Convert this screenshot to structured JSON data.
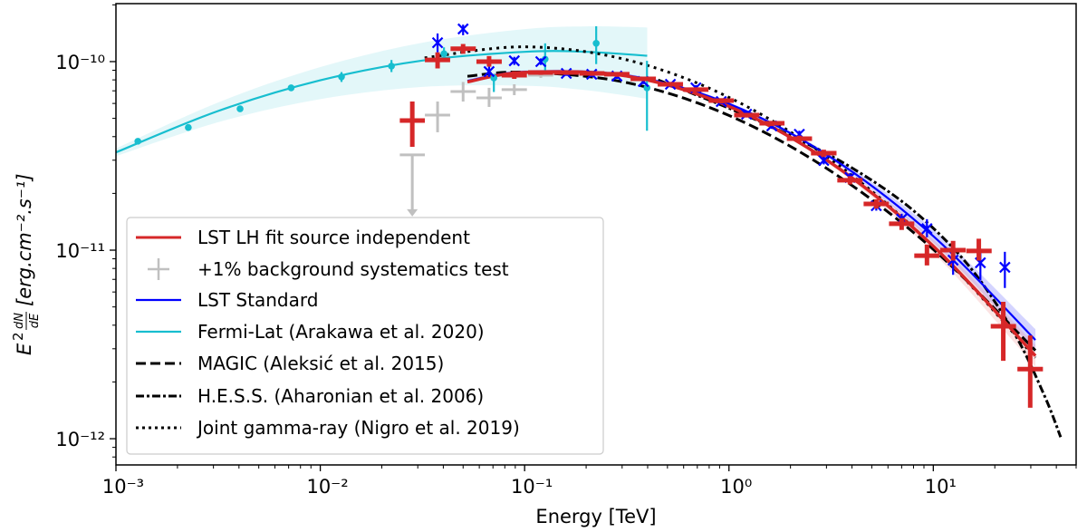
{
  "chart_data": {
    "type": "scatter",
    "title": "",
    "xlabel": "Energy [TeV]",
    "ylabel": {
      "base": "E",
      "exp": "2",
      "frac_num": "dN",
      "frac_den": "dE",
      "units": "[erg.cm⁻².s⁻¹]"
    },
    "x_scale": "log",
    "y_scale": "log",
    "xlim": [
      0.001,
      50
    ],
    "ylim": [
      7.26e-13,
      2.03e-10
    ],
    "grid": false,
    "legend_position": "lower-left",
    "x_ticks": [
      {
        "value": 0.001,
        "label": "10⁻³"
      },
      {
        "value": 0.01,
        "label": "10⁻²"
      },
      {
        "value": 0.1,
        "label": "10⁻¹"
      },
      {
        "value": 1,
        "label": "10⁰"
      },
      {
        "value": 10,
        "label": "10¹"
      }
    ],
    "y_ticks": [
      {
        "value": 1e-10,
        "label": "10⁻¹⁰"
      },
      {
        "value": 1e-11,
        "label": "10⁻¹¹"
      },
      {
        "value": 1e-12,
        "label": "10⁻¹²"
      }
    ],
    "colors": {
      "lst_lh": "#d62728",
      "bkg_test": "#c0c0c0",
      "lst_std": "#0000ff",
      "fermi": "#17becf",
      "reference": "#000000"
    },
    "legend": [
      {
        "key": "lst_lh_fit",
        "label": "LST LH fit source independent",
        "style": "solid-red"
      },
      {
        "key": "bkg_test",
        "label": "+1% background systematics test",
        "style": "errorbar-gray"
      },
      {
        "key": "lst_std",
        "label": "LST Standard",
        "style": "solid-blue"
      },
      {
        "key": "fermi",
        "label": "Fermi-Lat (Arakawa et al. 2020)",
        "style": "solid-cyan"
      },
      {
        "key": "magic",
        "label": "MAGIC (Aleksić et al. 2015)",
        "style": "dashed"
      },
      {
        "key": "hess",
        "label": "H.E.S.S. (Aharonian et al. 2006)",
        "style": "dashdot"
      },
      {
        "key": "nigro",
        "label": "Joint gamma-ray (Nigro et al. 2019)",
        "style": "dotted"
      }
    ],
    "point_columns": [
      "energy",
      "energy_lo",
      "energy_hi",
      "flux",
      "flux_lo",
      "flux_hi"
    ],
    "lst_lh_points": [
      [
        0.0282,
        0.0245,
        0.0325,
        4.87e-11,
        3.53e-11,
        6.14e-11
      ],
      [
        0.0375,
        0.0325,
        0.0432,
        1.02e-10,
        9.2e-11,
        1.12e-10
      ],
      [
        0.05,
        0.0434,
        0.0577,
        1.17e-10,
        1.1e-10,
        1.24e-10
      ],
      [
        0.067,
        0.0581,
        0.0773,
        1e-10,
        9.4e-11,
        1.07e-10
      ],
      [
        0.089,
        0.0772,
        0.1026,
        8.47e-11,
        8.1e-11,
        8.9e-11
      ],
      [
        0.12,
        0.104,
        0.138,
        8.75e-11,
        8.5e-11,
        9e-11
      ],
      [
        0.16,
        0.139,
        0.184,
        8.75e-11,
        8.5e-11,
        9e-11
      ],
      [
        0.213,
        0.185,
        0.246,
        8.66e-11,
        8.4e-11,
        8.9e-11
      ],
      [
        0.283,
        0.245,
        0.326,
        8.57e-11,
        8.3e-11,
        8.8e-11
      ],
      [
        0.381,
        0.33,
        0.439,
        8.1e-11,
        7.9e-11,
        8.3e-11
      ],
      [
        0.517,
        0.448,
        0.596,
        7.58e-11,
        7.4e-11,
        7.8e-11
      ],
      [
        0.689,
        0.598,
        0.794,
        7.1e-11,
        6.9e-11,
        7.3e-11
      ],
      [
        0.917,
        0.795,
        1.057,
        6.21e-11,
        6e-11,
        6.4e-11
      ],
      [
        1.22,
        1.06,
        1.41,
        5.2e-11,
        5.05e-11,
        5.35e-11
      ],
      [
        1.62,
        1.41,
        1.87,
        4.71e-11,
        4.55e-11,
        4.85e-11
      ],
      [
        2.21,
        1.92,
        2.55,
        3.9e-11,
        3.75e-11,
        4.05e-11
      ],
      [
        2.91,
        2.52,
        3.36,
        3.27e-11,
        3.13e-11,
        3.41e-11
      ],
      [
        3.91,
        3.39,
        4.51,
        2.35e-11,
        2.23e-11,
        2.47e-11
      ],
      [
        5.26,
        4.56,
        6.06,
        1.76e-11,
        1.66e-11,
        1.86e-11
      ],
      [
        7.0,
        6.07,
        8.07,
        1.38e-11,
        1.28e-11,
        1.48e-11
      ],
      [
        9.31,
        8.07,
        10.7,
        9.35e-12,
        8.3e-12,
        1.07e-11
      ],
      [
        12.5,
        10.8,
        14.4,
        1e-11,
        8.8e-12,
        1.12e-11
      ],
      [
        16.7,
        14.5,
        19.3,
        9.9e-12,
        8.8e-12,
        1.15e-11
      ],
      [
        22.0,
        19.1,
        25.4,
        3.95e-12,
        2.59e-12,
        5.32e-12
      ],
      [
        29.8,
        25.8,
        34.4,
        2.34e-12,
        1.46e-12,
        3.53e-12
      ]
    ],
    "bkg_test_points": [
      [
        0.0375,
        0.0325,
        0.0432,
        5.2e-11,
        4.22e-11,
        6.14e-11
      ],
      [
        0.05,
        0.0434,
        0.0577,
        6.94e-11,
        6.14e-11,
        7.8e-11
      ],
      [
        0.067,
        0.0581,
        0.0773,
        6.42e-11,
        5.75e-11,
        7.26e-11
      ],
      [
        0.089,
        0.0772,
        0.1026,
        7.1e-11,
        6.64e-11,
        7.58e-11
      ],
      [
        0.12,
        0.104,
        0.138,
        8.47e-11,
        8.2e-11,
        8.7e-11
      ]
    ],
    "bkg_test_upper_limits": [
      [
        0.0282,
        0.0245,
        0.0325,
        3.2e-11
      ]
    ],
    "lst_std_columns": [
      "energy",
      "flux",
      "flux_lo",
      "flux_hi"
    ],
    "lst_std_points": [
      [
        0.0375,
        1.26e-10,
        1.12e-10,
        1.41e-10
      ],
      [
        0.05,
        1.49e-10,
        1.38e-10,
        1.57e-10
      ],
      [
        0.067,
        8.86e-11,
        8.3e-11,
        9.4e-11
      ],
      [
        0.089,
        1.01e-10,
        9.6e-11,
        1.06e-10
      ],
      [
        0.12,
        1e-10,
        9.6e-11,
        1.04e-10
      ],
      [
        0.16,
        8.66e-11,
        8.4e-11,
        8.9e-11
      ],
      [
        0.213,
        8.57e-11,
        8.3e-11,
        8.8e-11
      ],
      [
        0.283,
        8.38e-11,
        8.1e-11,
        8.6e-11
      ],
      [
        0.381,
        7.84e-11,
        7.6e-11,
        8.1e-11
      ],
      [
        0.517,
        7.58e-11,
        7.35e-11,
        7.8e-11
      ],
      [
        0.689,
        7.26e-11,
        7.05e-11,
        7.5e-11
      ],
      [
        0.917,
        6.14e-11,
        5.95e-11,
        6.35e-11
      ],
      [
        1.22,
        5.26e-11,
        5.1e-11,
        5.45e-11
      ],
      [
        1.62,
        4.56e-11,
        4.4e-11,
        4.72e-11
      ],
      [
        2.21,
        4.12e-11,
        3.95e-11,
        4.3e-11
      ],
      [
        2.91,
        2.99e-11,
        2.85e-11,
        3.13e-11
      ],
      [
        3.91,
        2.43e-11,
        2.3e-11,
        2.56e-11
      ],
      [
        5.26,
        1.72e-11,
        1.62e-11,
        1.82e-11
      ],
      [
        7.0,
        1.46e-11,
        1.36e-11,
        1.56e-11
      ],
      [
        9.31,
        1.3e-11,
        1.17e-11,
        1.46e-11
      ],
      [
        12.5,
        8.85e-12,
        7.4e-12,
        9.9e-12
      ],
      [
        17.0,
        8.57e-12,
        6.9e-12,
        9.9e-12
      ],
      [
        22.4,
        8.11e-12,
        6.3e-12,
        9.8e-12
      ]
    ],
    "fermi_points": [
      [
        0.00128,
        3.78e-11,
        3.7e-11,
        3.86e-11
      ],
      [
        0.00226,
        4.47e-11,
        4.38e-11,
        4.56e-11
      ],
      [
        0.00405,
        5.62e-11,
        5.45e-11,
        5.8e-11
      ],
      [
        0.0072,
        7.26e-11,
        7e-11,
        7.5e-11
      ],
      [
        0.0127,
        8.3e-11,
        7.8e-11,
        8.8e-11
      ],
      [
        0.0223,
        9.46e-11,
        8.8e-11,
        1.02e-10
      ],
      [
        0.0403,
        1.1e-10,
        1.02e-10,
        1.19e-10
      ],
      [
        0.0707,
        8.2e-11,
        6.9e-11,
        8.6e-11
      ],
      [
        0.126,
        1.03e-10,
        8.6e-11,
        1.25e-10
      ],
      [
        0.224,
        1.25e-10,
        9.7e-11,
        1.54e-10
      ],
      [
        0.397,
        7.26e-11,
        4.3e-11,
        1.01e-10
      ]
    ],
    "curves": {
      "fermi": {
        "energy": [
          0.001,
          0.00316,
          0.01,
          0.0316,
          0.1,
          0.2,
          0.398
        ],
        "flux": [
          3.3e-11,
          5.47e-11,
          7.96e-11,
          1.013e-10,
          1.127e-10,
          1.127e-10,
          1.074e-10
        ],
        "band_lo": [
          3.15e-11,
          4.77e-11,
          6.32e-11,
          7.34e-11,
          7.45e-11,
          7.05e-11,
          6.35e-11
        ],
        "band_hi": [
          3.46e-11,
          6.07e-11,
          9.35e-11,
          1.26e-10,
          1.486e-10,
          1.538e-10,
          1.517e-10
        ]
      },
      "lst_lh_fit": {
        "energy": [
          0.0525,
          0.1,
          0.316,
          1,
          3.16,
          10,
          31.6
        ],
        "flux": [
          7.81e-11,
          8.77e-11,
          8.38e-11,
          5.79e-11,
          2.9e-11,
          1.05e-11,
          2.75e-12
        ]
      },
      "lst_std": {
        "energy": [
          0.0525,
          0.1,
          0.316,
          1,
          3.16,
          10,
          31.6
        ],
        "flux": [
          7.91e-11,
          8.83e-11,
          8.46e-11,
          5.97e-11,
          3.1e-11,
          1.186e-11,
          3.34e-12
        ]
      },
      "magic": {
        "energy": [
          0.0525,
          0.1,
          0.316,
          1,
          3.16,
          10,
          31.6
        ],
        "flux": [
          8.36e-11,
          8.79e-11,
          7.74e-11,
          5.18e-11,
          2.62e-11,
          1.01e-11,
          2.94e-12
        ]
      },
      "hess": {
        "energy": [
          0.45,
          1,
          2,
          4,
          8,
          15,
          25,
          35,
          42
        ],
        "flux": [
          7.99e-11,
          5.66e-11,
          4.05e-11,
          2.73e-11,
          1.62e-11,
          8.2e-12,
          3.6e-12,
          1.69e-12,
          1.02e-12
        ]
      },
      "nigro": {
        "energy": [
          0.0324,
          0.1,
          0.316,
          1,
          3.16,
          10,
          31.6
        ],
        "flux": [
          1.047e-10,
          1.198e-10,
          1.022e-10,
          6.46e-11,
          3.02e-11,
          1.048e-11,
          2.69e-12
        ]
      }
    }
  }
}
